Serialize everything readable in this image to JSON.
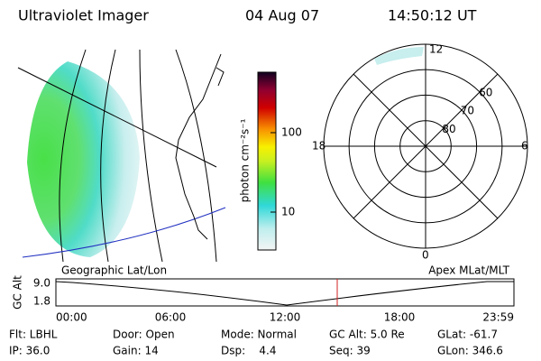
{
  "header": {
    "title": "Ultraviolet Imager",
    "date": "04 Aug 07",
    "time": "14:50:12 UT"
  },
  "colorbar": {
    "label": "photon cm⁻²s⁻¹",
    "ticks": [
      100,
      10
    ]
  },
  "polar": {
    "mlt_labels": [
      "12",
      "18",
      "6",
      "0"
    ],
    "lat_labels": [
      60,
      70,
      80
    ]
  },
  "orbit": {
    "left_label": "Geographic Lat/Lon",
    "right_label": "Apex MLat/MLT",
    "y_title": "GC Alt",
    "y_labels": [
      "9.0",
      "1.8"
    ],
    "x_labels": [
      "00:00",
      "06:00",
      "12:00",
      "18:00",
      "23:59"
    ]
  },
  "footer": {
    "rows": [
      [
        "Flt: LBHL",
        "Door: Open",
        "Mode: Normal",
        "GC Alt: 5.0 Re",
        "GLat: -61.7"
      ],
      [
        "IP: 36.0",
        "Gain: 14",
        "Dsp:    4.4",
        "Seq: 39",
        "GLon: 346.6"
      ]
    ]
  }
}
